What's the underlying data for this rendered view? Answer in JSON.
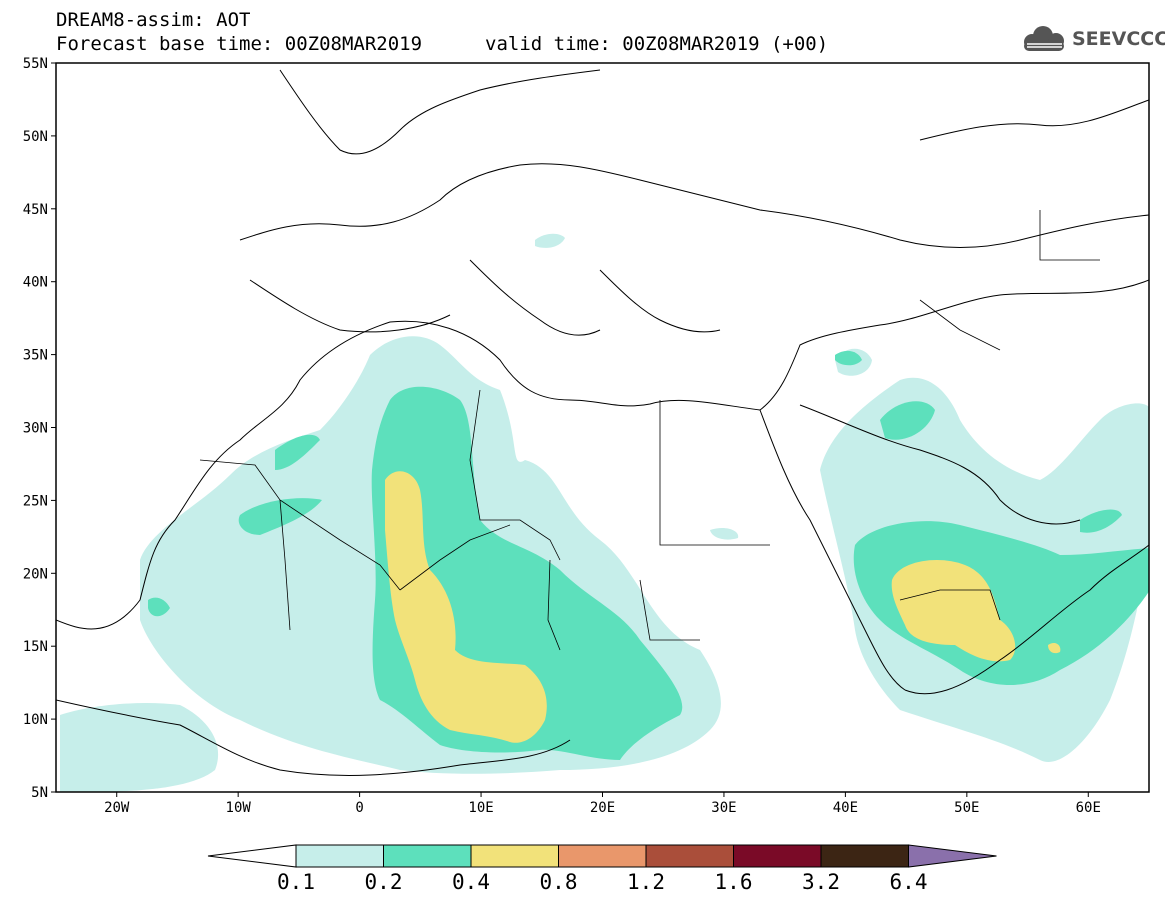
{
  "header": {
    "title": "DREAM8-assim: AOT",
    "base_time": "Forecast base time: 00Z08MAR2019",
    "valid_time": "valid time: 00Z08MAR2019 (+00)"
  },
  "logo": {
    "text": "SEEVCCC",
    "icon": "cloud-logo-icon"
  },
  "map": {
    "lon_range": [
      -25,
      65
    ],
    "lat_range": [
      5,
      55
    ],
    "lat_ticks": [
      {
        "value": 55,
        "label": "55N"
      },
      {
        "value": 50,
        "label": "50N"
      },
      {
        "value": 45,
        "label": "45N"
      },
      {
        "value": 40,
        "label": "40N"
      },
      {
        "value": 35,
        "label": "35N"
      },
      {
        "value": 30,
        "label": "30N"
      },
      {
        "value": 25,
        "label": "25N"
      },
      {
        "value": 20,
        "label": "20N"
      },
      {
        "value": 15,
        "label": "15N"
      },
      {
        "value": 10,
        "label": "10N"
      },
      {
        "value": 5,
        "label": "5N"
      }
    ],
    "lon_ticks": [
      {
        "value": -20,
        "label": "20W"
      },
      {
        "value": -10,
        "label": "10W"
      },
      {
        "value": 0,
        "label": "0"
      },
      {
        "value": 10,
        "label": "10E"
      },
      {
        "value": 20,
        "label": "20E"
      },
      {
        "value": 30,
        "label": "30E"
      },
      {
        "value": 40,
        "label": "40E"
      },
      {
        "value": 50,
        "label": "50E"
      },
      {
        "value": 60,
        "label": "60E"
      }
    ]
  },
  "colorbar": {
    "levels": [
      "0.1",
      "0.2",
      "0.4",
      "0.8",
      "1.2",
      "1.6",
      "3.2",
      "6.4"
    ],
    "colors": [
      "#ffffff",
      "#c6eeea",
      "#5de0bc",
      "#f2e27a",
      "#e9976b",
      "#aa4e3a",
      "#7a0a27",
      "#3c2514",
      "#8a70ab"
    ]
  }
}
